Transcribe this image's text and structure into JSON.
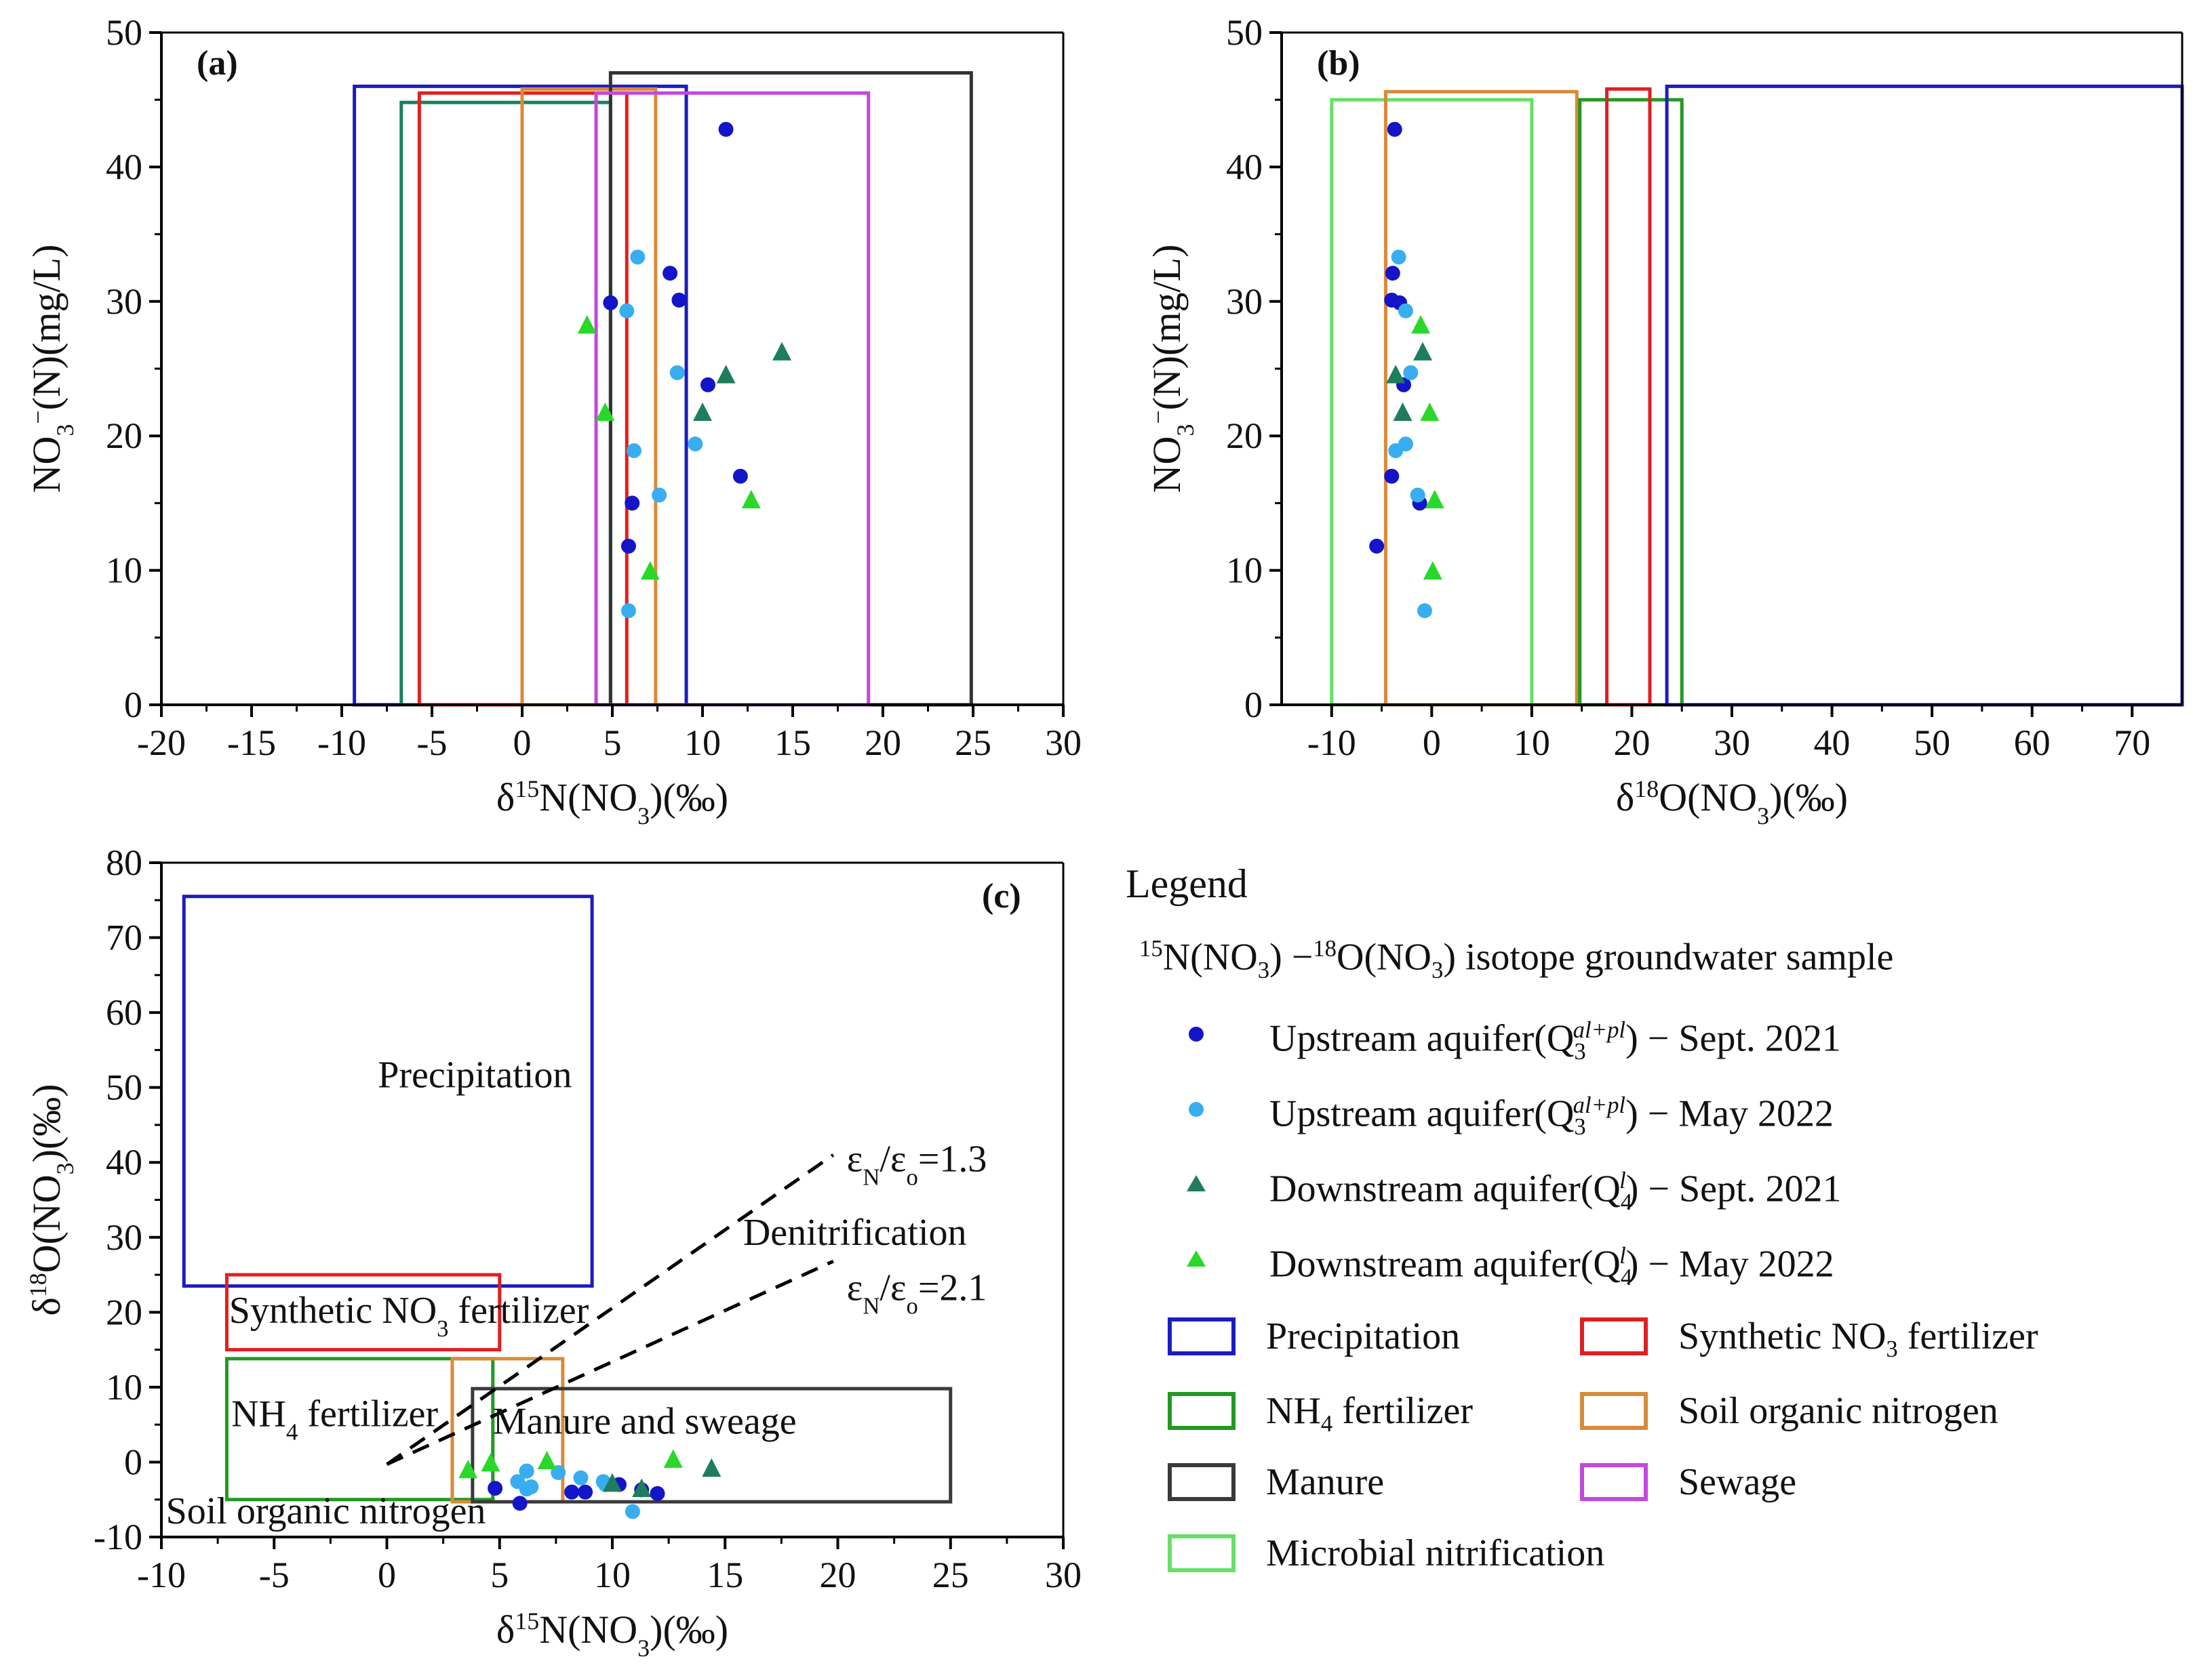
{
  "colors": {
    "upstream_sept_2021": "#1414c8",
    "upstream_may_2022": "#38aef0",
    "downstream_sept_2021": "#1e7d5c",
    "downstream_may_2022": "#2ad82a",
    "precipitation": "#1c1cc0",
    "synthetic_no3_fertilizer": "#e02020",
    "nh4_fertilizer": "#229922",
    "soil_organic_nitrogen": "#d98a3a",
    "manure": "#3a3a3a",
    "sewage": "#c646e0",
    "microbial_nitrification": "#66e066",
    "manure_panel_a": "#333333",
    "precip_panel_a": "#1c1cc0",
    "synthetic_panel_a": "#e02020",
    "nh4_panel_a": "#1a8060",
    "soil_panel_a": "#d98a3a"
  },
  "legend": {
    "title": "Legend",
    "subtitle_parts": [
      "15",
      "N(NO",
      "3",
      ") −",
      "18",
      "O(NO",
      "3",
      ") isotope groundwater sample"
    ],
    "series": [
      {
        "marker": "circle",
        "color_key": "upstream_sept_2021",
        "pre": "Upstream aquifer(Q",
        "sub": "3",
        "sup": "al+pl",
        "post": ") − Sept. 2021"
      },
      {
        "marker": "circle",
        "color_key": "upstream_may_2022",
        "pre": "Upstream aquifer(Q",
        "sub": "3",
        "sup": "al+pl",
        "post": ") − May 2022"
      },
      {
        "marker": "triangle",
        "color_key": "downstream_sept_2021",
        "pre": "Downstream aquifer(Q",
        "sub": "4",
        "sup": "l",
        "post": ") − Sept. 2021"
      },
      {
        "marker": "triangle",
        "color_key": "downstream_may_2022",
        "pre": "Downstream aquifer(Q",
        "sub": "4",
        "sup": "l",
        "post": ") − May 2022"
      }
    ],
    "boxes": [
      {
        "color_key": "precipitation",
        "label": "Precipitation"
      },
      {
        "color_key": "synthetic_no3_fertilizer",
        "label_pre": "Synthetic NO",
        "label_sub": "3",
        "label_post": " fertilizer"
      },
      {
        "color_key": "nh4_fertilizer",
        "label_pre": "NH",
        "label_sub": "4",
        "label_post": " fertilizer"
      },
      {
        "color_key": "soil_organic_nitrogen",
        "label": "Soil organic nitrogen"
      },
      {
        "color_key": "manure",
        "label": "Manure"
      },
      {
        "color_key": "sewage",
        "label": "Sewage"
      },
      {
        "color_key": "microbial_nitrification",
        "label": "Microbial nitrification"
      }
    ]
  },
  "chart_data": [
    {
      "panel": "(a)",
      "type": "scatter",
      "xlabel_parts": [
        "δ",
        "15",
        "N(NO",
        "3",
        ")(‰)"
      ],
      "ylabel_parts": [
        "NO",
        "3",
        "−",
        "(N)(mg/L)"
      ],
      "xlim": [
        -20,
        30
      ],
      "ylim": [
        0,
        50
      ],
      "xticks": [
        -20,
        -15,
        -10,
        -5,
        0,
        5,
        10,
        15,
        20,
        25,
        30
      ],
      "yticks": [
        0,
        10,
        20,
        30,
        40,
        50
      ],
      "grid": false,
      "ranges": [
        {
          "name": "Precipitation",
          "color_key": "precip_panel_a",
          "x": [
            -9.3,
            9.1
          ],
          "y": [
            0,
            46
          ]
        },
        {
          "name": "NH4 fertilizer",
          "color_key": "nh4_panel_a",
          "x": [
            -6.7,
            4.9
          ],
          "y": [
            0,
            44.8
          ]
        },
        {
          "name": "Synthetic NO3 fertilizer",
          "color_key": "synthetic_panel_a",
          "x": [
            -5.7,
            5.8
          ],
          "y": [
            0,
            45.5
          ]
        },
        {
          "name": "Soil organic nitrogen",
          "color_key": "soil_panel_a",
          "x": [
            0,
            7.4
          ],
          "y": [
            0,
            45.8
          ]
        },
        {
          "name": "Manure",
          "color_key": "manure_panel_a",
          "x": [
            4.9,
            24.9
          ],
          "y": [
            0,
            47
          ]
        },
        {
          "name": "Sewage",
          "color_key": "sewage",
          "x": [
            4.1,
            19.2
          ],
          "y": [
            0,
            45.5
          ]
        }
      ],
      "series": [
        {
          "color_key": "upstream_sept_2021",
          "marker": "circle",
          "points": [
            [
              11.3,
              42.8
            ],
            [
              8.2,
              32.1
            ],
            [
              8.7,
              30.1
            ],
            [
              4.9,
              29.9
            ],
            [
              10.3,
              23.8
            ],
            [
              12.1,
              17
            ],
            [
              6.1,
              15
            ],
            [
              5.9,
              11.8
            ]
          ]
        },
        {
          "color_key": "upstream_may_2022",
          "marker": "circle",
          "points": [
            [
              6.4,
              33.3
            ],
            [
              5.8,
              29.3
            ],
            [
              8.6,
              24.7
            ],
            [
              6.2,
              18.9
            ],
            [
              9.6,
              19.4
            ],
            [
              7.6,
              15.6
            ],
            [
              5.9,
              7
            ]
          ]
        },
        {
          "color_key": "downstream_sept_2021",
          "marker": "triangle",
          "points": [
            [
              14.4,
              26.2
            ],
            [
              11.3,
              24.5
            ],
            [
              10.0,
              21.7
            ]
          ]
        },
        {
          "color_key": "downstream_may_2022",
          "marker": "triangle",
          "points": [
            [
              3.6,
              28.2
            ],
            [
              4.6,
              21.7
            ],
            [
              12.7,
              15.2
            ],
            [
              7.1,
              9.9
            ]
          ]
        }
      ]
    },
    {
      "panel": "(b)",
      "type": "scatter",
      "xlabel_parts": [
        "δ",
        "18",
        "O(NO",
        "3",
        ")(‰)"
      ],
      "ylabel_parts": [
        "NO",
        "3",
        "−",
        "(N)(mg/L)"
      ],
      "xlim": [
        -15,
        75
      ],
      "ylim": [
        0,
        50
      ],
      "xticks": [
        -10,
        0,
        10,
        20,
        30,
        40,
        50,
        60,
        70
      ],
      "yticks": [
        0,
        10,
        20,
        30,
        40,
        50
      ],
      "grid": false,
      "ranges": [
        {
          "name": "Microbial nitrification",
          "color_key": "microbial_nitrification",
          "x": [
            -10,
            10
          ],
          "y": [
            0,
            45
          ]
        },
        {
          "name": "Soil organic nitrogen",
          "color_key": "soil_organic_nitrogen",
          "x": [
            -4.6,
            14.5
          ],
          "y": [
            0,
            45.6
          ]
        },
        {
          "name": "NH4 fertilizer",
          "color_key": "nh4_fertilizer",
          "x": [
            14.8,
            25
          ],
          "y": [
            0,
            45
          ]
        },
        {
          "name": "Synthetic NO3 fertilizer",
          "color_key": "synthetic_no3_fertilizer",
          "x": [
            17.5,
            21.8
          ],
          "y": [
            0,
            45.8
          ]
        },
        {
          "name": "Precipitation",
          "color_key": "precipitation",
          "x": [
            23.5,
            75
          ],
          "y": [
            0,
            46
          ]
        }
      ],
      "series": [
        {
          "color_key": "upstream_sept_2021",
          "marker": "circle",
          "points": [
            [
              -3.7,
              42.8
            ],
            [
              -3.9,
              32.1
            ],
            [
              -4.0,
              30.1
            ],
            [
              -3.2,
              29.9
            ],
            [
              -2.8,
              23.8
            ],
            [
              -4.0,
              17
            ],
            [
              -1.2,
              15
            ],
            [
              -5.5,
              11.8
            ]
          ]
        },
        {
          "color_key": "upstream_may_2022",
          "marker": "circle",
          "points": [
            [
              -3.3,
              33.3
            ],
            [
              -2.6,
              29.3
            ],
            [
              -2.1,
              24.7
            ],
            [
              -3.6,
              18.9
            ],
            [
              -2.6,
              19.4
            ],
            [
              -1.4,
              15.6
            ],
            [
              -0.7,
              7
            ]
          ]
        },
        {
          "color_key": "downstream_sept_2021",
          "marker": "triangle",
          "points": [
            [
              -0.9,
              26.2
            ],
            [
              -3.6,
              24.5
            ],
            [
              -2.9,
              21.7
            ]
          ]
        },
        {
          "color_key": "downstream_may_2022",
          "marker": "triangle",
          "points": [
            [
              -1.1,
              28.2
            ],
            [
              -0.2,
              21.7
            ],
            [
              0.3,
              15.2
            ],
            [
              0.1,
              9.9
            ]
          ]
        }
      ]
    },
    {
      "panel": "(c)",
      "type": "scatter",
      "xlabel_parts": [
        "δ",
        "15",
        "N(NO",
        "3",
        ")(‰)"
      ],
      "ylabel_parts": [
        "δ",
        "18",
        "O(NO",
        "3",
        ")(‰)"
      ],
      "xlim": [
        -10,
        30
      ],
      "ylim": [
        -10,
        80
      ],
      "xticks": [
        -10,
        -5,
        0,
        5,
        10,
        15,
        20,
        25,
        30
      ],
      "yticks": [
        -10,
        0,
        10,
        20,
        30,
        40,
        50,
        60,
        70,
        80
      ],
      "grid": false,
      "ranges": [
        {
          "name": "Precipitation",
          "color_key": "precipitation",
          "x": [
            -9,
            9.1
          ],
          "y": [
            23.5,
            75.5
          ]
        },
        {
          "name": "Synthetic NO3 fertilizer",
          "color_key": "synthetic_no3_fertilizer",
          "x": [
            -7.1,
            5
          ],
          "y": [
            15,
            25
          ]
        },
        {
          "name": "NH4 fertilizer",
          "color_key": "nh4_fertilizer",
          "x": [
            -7.1,
            4.7
          ],
          "y": [
            -5,
            13.8
          ]
        },
        {
          "name": "Soil organic nitrogen",
          "color_key": "soil_organic_nitrogen",
          "x": [
            2.9,
            7.8
          ],
          "y": [
            -5.3,
            13.8
          ]
        },
        {
          "name": "Manure and sewage",
          "color_key": "manure",
          "x": [
            3.8,
            25
          ],
          "y": [
            -5.3,
            9.8
          ]
        }
      ],
      "region_labels": [
        {
          "text": "Precipitation",
          "x": -0.4,
          "y": 50
        },
        {
          "text_pre": "Synthetic NO",
          "text_sub": "3",
          "text_post": " fertilizer",
          "x": -7.0,
          "y": 18.6
        },
        {
          "text_pre": "NH",
          "text_sub": "4",
          "text_post": " fertilizer",
          "x": -6.9,
          "y": 4.8
        },
        {
          "text": "Manure and sweage",
          "x": 4.7,
          "y": 3.8
        },
        {
          "text": "Soil organic nitrogen",
          "x": -9.8,
          "y": -8.2
        },
        {
          "text": "Denitrification",
          "x": 15.8,
          "y": 29.0
        }
      ],
      "trend_lines": [
        {
          "label_pre": "ε",
          "label_sub1": "N",
          "label_mid": "/ε",
          "label_sub2": "o",
          "label_post": "=1.3",
          "x": [
            0,
            19.8
          ],
          "y": [
            -0.3,
            41
          ],
          "label_x": 20.4,
          "label_y": 38.8
        },
        {
          "label_pre": "ε",
          "label_sub1": "N",
          "label_mid": "/ε",
          "label_sub2": "o",
          "label_post": "=2.1",
          "x": [
            0,
            19.8
          ],
          "y": [
            -0.3,
            26.8
          ],
          "label_x": 20.4,
          "label_y": 21.6
        }
      ],
      "series": [
        {
          "color_key": "upstream_sept_2021",
          "marker": "circle",
          "points": [
            [
              4.8,
              -3.5
            ],
            [
              8.2,
              -4.0
            ],
            [
              8.8,
              -4.0
            ],
            [
              10.3,
              -3.0
            ],
            [
              12.0,
              -4.2
            ],
            [
              6.2,
              -1.2
            ],
            [
              5.9,
              -5.5
            ],
            [
              11.3,
              -3.7
            ]
          ]
        },
        {
          "color_key": "upstream_may_2022",
          "marker": "circle",
          "points": [
            [
              6.2,
              -1.2
            ],
            [
              6.4,
              -3.3
            ],
            [
              5.8,
              -2.6
            ],
            [
              8.6,
              -2.1
            ],
            [
              6.2,
              -3.6
            ],
            [
              9.6,
              -2.6
            ],
            [
              7.6,
              -1.4
            ],
            [
              10.9,
              -6.6
            ],
            [
              9.7,
              -3.0
            ]
          ]
        },
        {
          "color_key": "downstream_sept_2021",
          "marker": "triangle",
          "points": [
            [
              14.4,
              -0.9
            ],
            [
              11.3,
              -3.6
            ],
            [
              10.0,
              -2.9
            ]
          ]
        },
        {
          "color_key": "downstream_may_2022",
          "marker": "triangle",
          "points": [
            [
              3.6,
              -1.1
            ],
            [
              4.6,
              -0.2
            ],
            [
              12.7,
              0.3
            ],
            [
              7.1,
              0.1
            ]
          ]
        }
      ]
    }
  ]
}
